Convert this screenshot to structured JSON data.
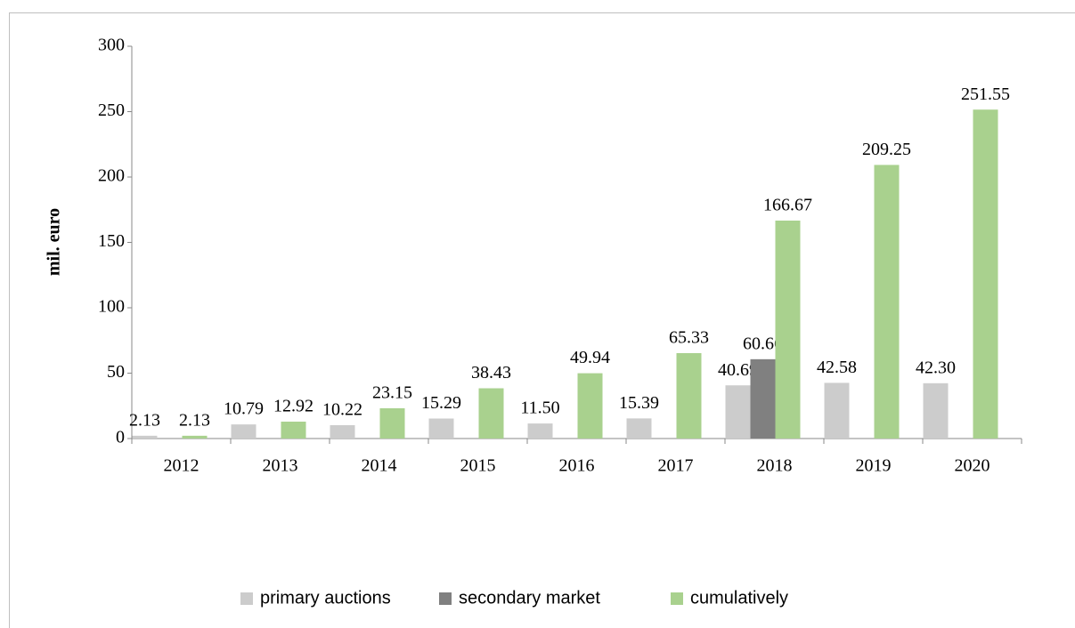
{
  "chart_data": {
    "type": "bar",
    "y_label": "mil. euro",
    "categories": [
      "2012",
      "2013",
      "2014",
      "2015",
      "2016",
      "2017",
      "2018",
      "2019",
      "2020"
    ],
    "series": [
      {
        "name": "primary auctions",
        "color": "#cccccc",
        "values": [
          2.13,
          10.79,
          10.22,
          15.29,
          11.5,
          15.39,
          40.69,
          42.58,
          42.3
        ],
        "value_labels": [
          "2.13",
          "10.79",
          "10.22",
          "15.29",
          "11.50",
          "15.39",
          "40.69",
          "42.58",
          "42.30"
        ]
      },
      {
        "name": "secondary market",
        "color": "#808080",
        "values": [
          null,
          null,
          null,
          null,
          null,
          null,
          60.66,
          null,
          null
        ],
        "value_labels": [
          null,
          null,
          null,
          null,
          null,
          null,
          "60.66",
          null,
          null
        ]
      },
      {
        "name": "cumulatively",
        "color": "#a9d18e",
        "values": [
          2.13,
          12.92,
          23.15,
          38.43,
          49.94,
          65.33,
          166.67,
          209.25,
          251.55
        ],
        "value_labels": [
          "2.13",
          "12.92",
          "23.15",
          "38.43",
          "49.94",
          "65.33",
          "166.67",
          "209.25",
          "251.55"
        ]
      }
    ],
    "ylim": [
      0,
      300
    ],
    "yticks": [
      0,
      50,
      100,
      150,
      200,
      250,
      300
    ],
    "grid": false,
    "legend": "bottom"
  }
}
